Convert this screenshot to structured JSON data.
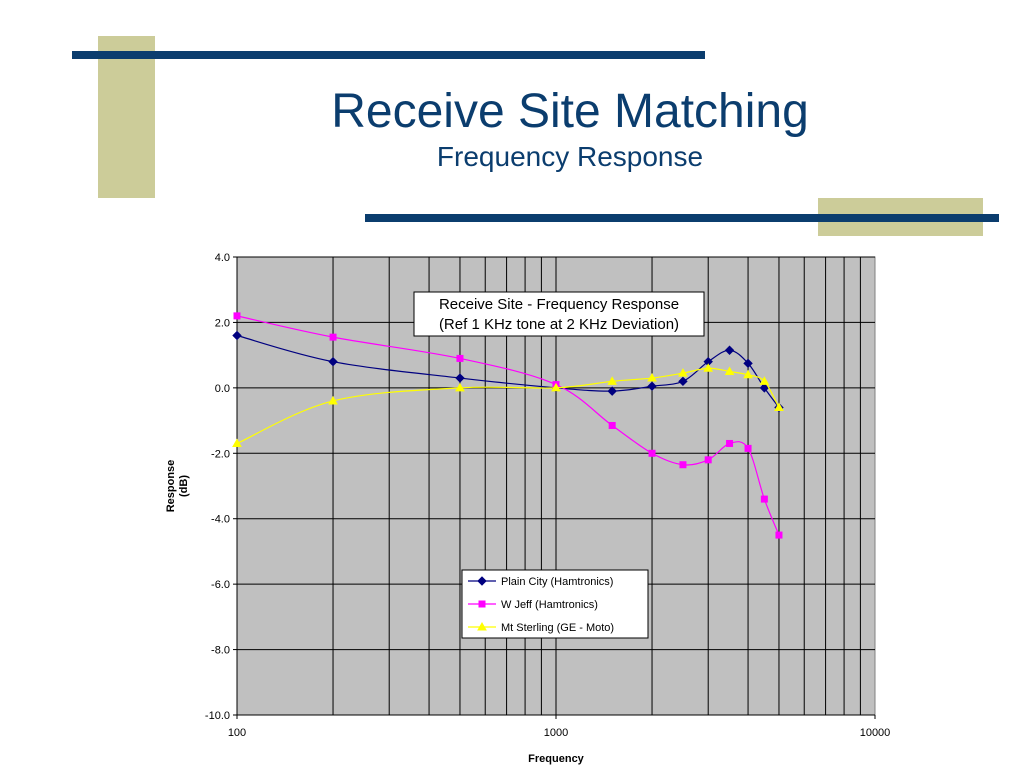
{
  "slide": {
    "title": "Receive Site Matching",
    "subtitle": "Frequency Response"
  },
  "theme": {
    "navy": "#0b3d6e",
    "khaki": "#cccc99",
    "plot_bg": "#c0c0c0"
  },
  "chart_data": {
    "type": "line",
    "title_lines": [
      "Receive Site - Frequency Response",
      "(Ref 1 KHz tone at 2 KHz Deviation)"
    ],
    "xlabel": "Frequency",
    "ylabel_lines": [
      "Response",
      "(dB)"
    ],
    "x_scale": "log",
    "xlim": [
      100,
      10000
    ],
    "ylim": [
      -10,
      4
    ],
    "x_ticks": [
      "100",
      "1000",
      "10000"
    ],
    "y_ticks": [
      "4.0",
      "2.0",
      "0.0",
      "-2.0",
      "-4.0",
      "-6.0",
      "-8.0",
      "-10.0"
    ],
    "grid": true,
    "legend_position": "lower-center",
    "series": [
      {
        "name": "Plain City  (Hamtronics)",
        "color": "#000080",
        "marker": "diamond",
        "x": [
          100,
          200,
          500,
          1000,
          1500,
          2000,
          2500,
          3000,
          3500,
          4000,
          4500,
          5000
        ],
        "y": [
          1.6,
          0.8,
          0.3,
          0.0,
          -0.1,
          0.05,
          0.2,
          0.8,
          1.15,
          0.75,
          0.0,
          -0.6
        ]
      },
      {
        "name": "W Jeff (Hamtronics)",
        "color": "#ff00ff",
        "marker": "square",
        "x": [
          100,
          200,
          500,
          1000,
          1500,
          2000,
          2500,
          3000,
          3500,
          4000,
          4500,
          5000
        ],
        "y": [
          2.2,
          1.55,
          0.9,
          0.1,
          -1.15,
          -2.0,
          -2.35,
          -2.2,
          -1.7,
          -1.85,
          -3.4,
          -4.5
        ]
      },
      {
        "name": "Mt Sterling (GE - Moto)",
        "color": "#ffff00",
        "marker": "triangle",
        "x": [
          100,
          200,
          500,
          1000,
          1500,
          2000,
          2500,
          3000,
          3500,
          4000,
          4500,
          5000
        ],
        "y": [
          -1.7,
          -0.4,
          0.0,
          0.0,
          0.2,
          0.3,
          0.45,
          0.6,
          0.5,
          0.4,
          0.2,
          -0.6
        ]
      }
    ]
  }
}
